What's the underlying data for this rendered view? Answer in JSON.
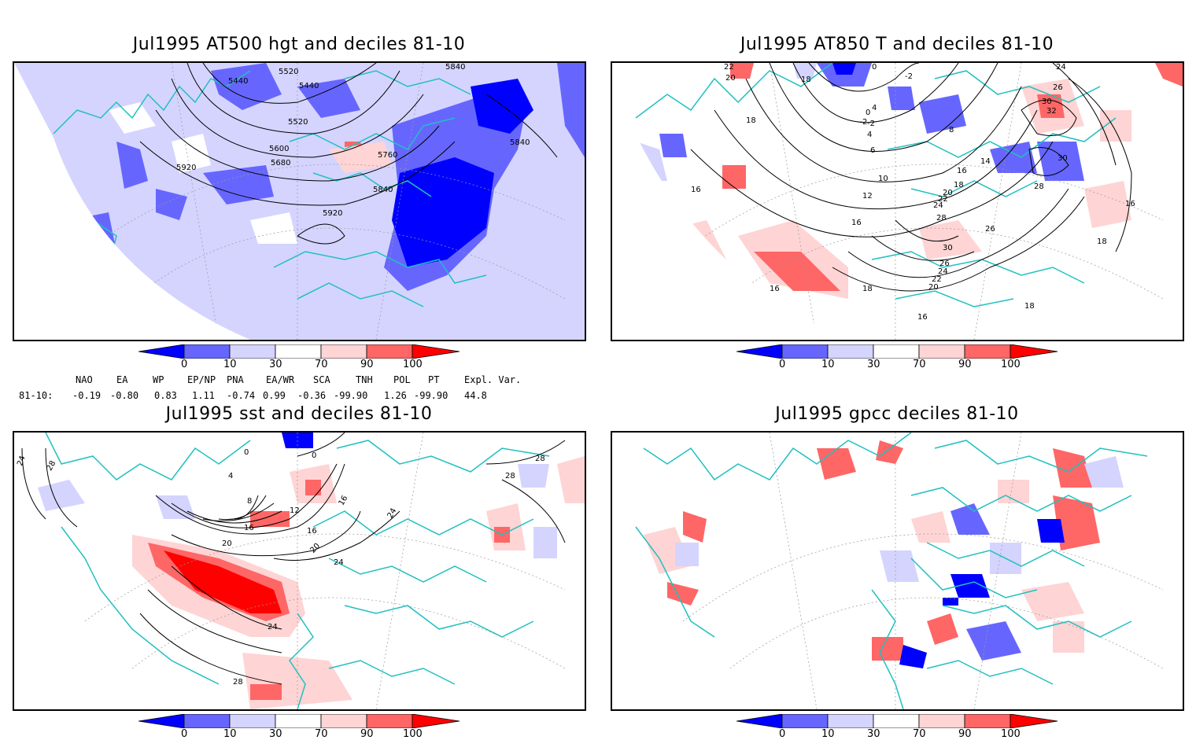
{
  "panels": {
    "p1": {
      "title": "Jul1995 AT500 hgt and deciles 81-10",
      "contour_labels": [
        "5440",
        "5520",
        "5840",
        "5440",
        "5520",
        "5600",
        "5680",
        "5760",
        "5840",
        "5920",
        "5920",
        "5840"
      ]
    },
    "p2": {
      "title": "Jul1995 AT850 T and deciles 81-10",
      "contour_labels": [
        "22",
        "20",
        "18",
        "16",
        "16",
        "18",
        "0",
        "-2",
        "4",
        "2",
        "0",
        "-2",
        "4",
        "8",
        "6",
        "10",
        "12",
        "16",
        "14",
        "16",
        "18",
        "20",
        "22",
        "24",
        "28",
        "26",
        "30",
        "26",
        "24",
        "22",
        "20",
        "18",
        "16",
        "18",
        "18",
        "16",
        "24",
        "26",
        "30",
        "32",
        "30",
        "28",
        "16"
      ]
    },
    "p3": {
      "title": "Jul1995 sst and deciles 81-10",
      "contour_labels": [
        "24",
        "28",
        "0",
        "0",
        "4",
        "8",
        "12",
        "16",
        "16",
        "20",
        "20",
        "24",
        "24",
        "28",
        "28",
        "16",
        "24",
        "28"
      ]
    },
    "p4": {
      "title": "Jul1995 gpcc deciles 81-10"
    }
  },
  "colorbar": {
    "ticks": [
      "0",
      "10",
      "30",
      "70",
      "90",
      "100"
    ],
    "colors": [
      "#0000ff",
      "#6666ff",
      "#d4d4ff",
      "#ffffff",
      "#ffd4d4",
      "#ff6666",
      "#ff0000"
    ]
  },
  "indices": {
    "headers": [
      "NAO",
      "EA",
      "WP",
      "EP/NP",
      "PNA",
      "EA/WR",
      "SCA",
      "TNH",
      "POL",
      "PT",
      "Expl. Var."
    ],
    "row_label": "81-10:",
    "values": [
      "-0.19",
      "-0.80",
      "0.83",
      "1.11",
      "-0.74",
      "0.99",
      "-0.36",
      "-99.90",
      "1.26",
      "-99.90",
      "44.8"
    ]
  },
  "colors": {
    "coast": "#20c0c0",
    "border": "#000000"
  }
}
